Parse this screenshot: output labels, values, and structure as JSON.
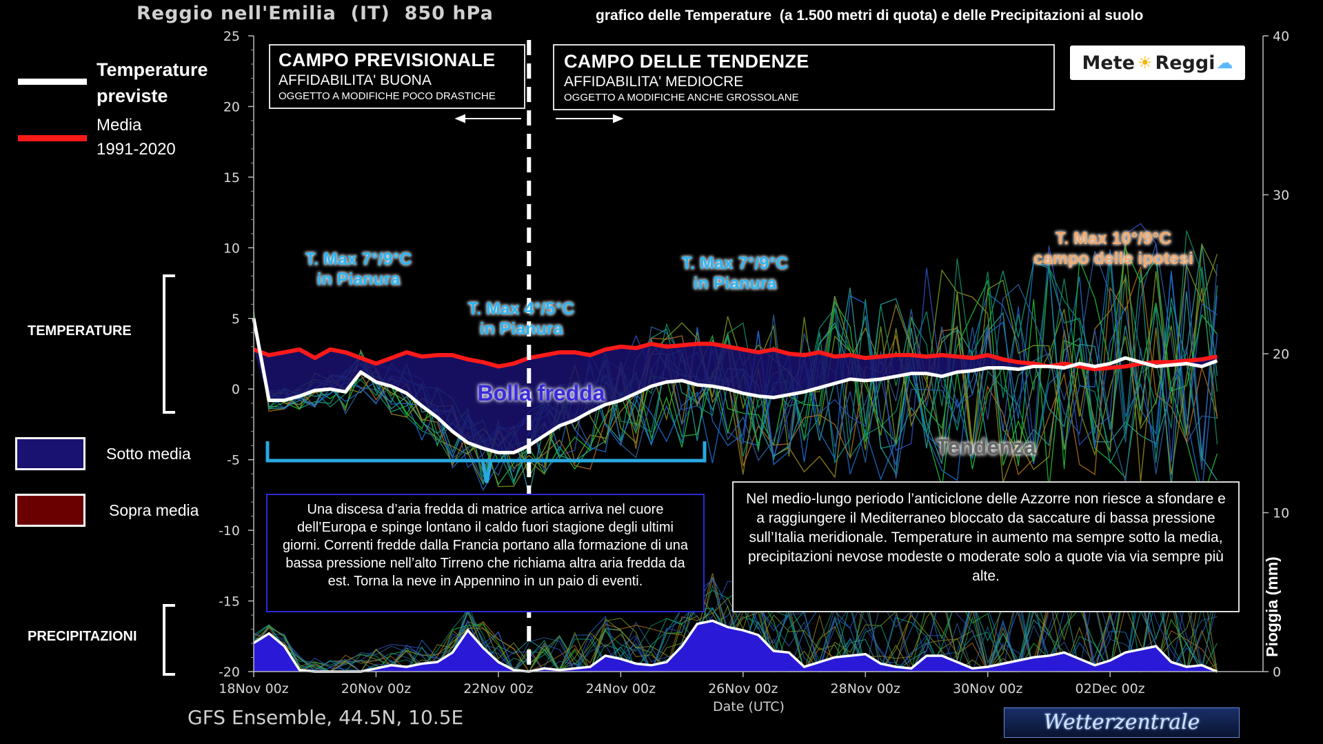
{
  "header": {
    "city": "Reggio nell'Emilia  (IT)  850 hPa",
    "subtitle": "grafico delle Temperature  (a 1.500 metri di quota) e delle Precipitazioni al suolo"
  },
  "legend": {
    "temp_label_1": "Temperature",
    "temp_label_2": "previste",
    "mean_label_1": "Media",
    "mean_label_2": "1991-2020",
    "below_label": "Sotto media",
    "above_label": "Sopra media",
    "section_temp": "TEMPERATURE",
    "section_precip": "PRECIPITAZIONI"
  },
  "boxes": {
    "forecast_title": "CAMPO PREVISIONALE",
    "forecast_line1": "AFFIDABILITA' BUONA",
    "forecast_line2": "OGGETTO A MODIFICHE POCO DRASTICHE",
    "trend_title": "CAMPO DELLE TENDENZE",
    "trend_line1": "AFFIDABILITA' MEDIOCRE",
    "trend_line2": "OGGETTO A MODIFICHE ANCHE GROSSOLANE"
  },
  "logo": {
    "text_a": "Mete",
    "text_b": "Reggi"
  },
  "annotations": {
    "tmax1_a": "T. Max 7°/9°C",
    "tmax1_b": "in Pianura",
    "tmax2_a": "T. Max 4°/5°C",
    "tmax2_b": "in Pianura",
    "tmax3_a": "T. Max 7°/9°C",
    "tmax3_b": "in Pianura",
    "tmax4_a": "T. Max 10°/9°C",
    "tmax4_b": "campo delle ipotesi",
    "bolla": "Bolla fredda",
    "tendenza": "Tendenza",
    "note_left": "Una discesa d’aria fredda di matrice artica arriva nel cuore dell’Europa e spinge lontano il caldo fuori stagione degli ultimi giorni. Correnti fredde dalla Francia portano alla formazione di una bassa pressione nell’alto Tirreno che richiama altra aria fredda da est. Torna la neve in Appennino in un paio di eventi.",
    "note_right": "Nel medio-lungo periodo l’anticiclone delle Azzorre non riesce a sfondare e a raggiungere il Mediterraneo bloccato da saccature di bassa pressione sull’Italia meridionale. Temperature in aumento ma sempre sotto la media, precipitazioni nevose modeste o moderate solo a quote via via sempre più alte."
  },
  "footer": {
    "model": "GFS Ensemble, 44.5N, 10.5E",
    "xaxis_title": "Date (UTC)",
    "brand": "Wetterzentrale",
    "y2label": "Pioggia (mm)"
  },
  "colors": {
    "forecast": "#ffffff",
    "mean": "#ff1a1a",
    "below_fill": "#1a1270",
    "above_fill": "#6b0000",
    "precip_fill": "#2a1ad8",
    "annotation_blue": "#29b6f6",
    "annotation_orange": "#f5a96a",
    "bracket": "#29a8e0"
  },
  "chart_data": {
    "type": "line",
    "title": "Reggio nell'Emilia  (IT)  850 hPa",
    "xlabel": "Date (UTC)",
    "ylabel": "",
    "y2label": "Pioggia (mm)",
    "ylim": [
      -20,
      25
    ],
    "y2lim": [
      0,
      40
    ],
    "yticks": [
      25,
      20,
      15,
      10,
      5,
      0,
      -5,
      -10,
      -15,
      -20
    ],
    "y2ticks": [
      40,
      30,
      20,
      10,
      0
    ],
    "x_range_days": [
      0,
      16.5
    ],
    "x_ticks": [
      {
        "day": 0,
        "label": "18Nov 00z"
      },
      {
        "day": 2,
        "label": "20Nov 00z"
      },
      {
        "day": 4,
        "label": "22Nov 00z"
      },
      {
        "day": 6,
        "label": "24Nov 00z"
      },
      {
        "day": 8,
        "label": "26Nov 00z"
      },
      {
        "day": 10,
        "label": "28Nov 00z"
      },
      {
        "day": 12,
        "label": "30Nov 00z"
      },
      {
        "day": 14,
        "label": "02Dec 00z"
      }
    ],
    "forecast_split_day": 4.5,
    "series": [
      {
        "name": "Temperature previste",
        "x": [
          0,
          0.25,
          0.5,
          0.75,
          1,
          1.25,
          1.5,
          1.75,
          2,
          2.25,
          2.5,
          2.75,
          3,
          3.25,
          3.5,
          3.75,
          4,
          4.25,
          4.5,
          4.75,
          5,
          5.25,
          5.5,
          5.75,
          6,
          6.25,
          6.5,
          6.75,
          7,
          7.25,
          7.5,
          7.75,
          8,
          8.25,
          8.5,
          8.75,
          9,
          9.25,
          9.5,
          9.75,
          10,
          10.25,
          10.5,
          10.75,
          11,
          11.25,
          11.5,
          11.75,
          12,
          12.25,
          12.5,
          12.75,
          13,
          13.25,
          13.5,
          13.75,
          14,
          14.25,
          14.5,
          14.75,
          15,
          15.25,
          15.5,
          15.75
        ],
        "values": [
          5,
          -0.8,
          -0.8,
          -0.5,
          -0.1,
          0,
          -0.2,
          1.2,
          0.5,
          0.2,
          -0.3,
          -1.2,
          -2,
          -3,
          -3.8,
          -4.2,
          -4.5,
          -4.5,
          -4,
          -3.3,
          -2.6,
          -2.2,
          -1.6,
          -1.1,
          -0.8,
          -0.3,
          0.2,
          0.5,
          0.6,
          0.3,
          0.2,
          0,
          -0.3,
          -0.5,
          -0.6,
          -0.4,
          -0.2,
          0.1,
          0.4,
          0.7,
          0.6,
          0.7,
          0.9,
          1.1,
          1.1,
          0.9,
          1.2,
          1.3,
          1.5,
          1.5,
          1.4,
          1.6,
          1.6,
          1.5,
          1.8,
          1.6,
          1.8,
          2.2,
          1.9,
          1.6,
          1.7,
          1.8,
          1.6,
          2
        ]
      },
      {
        "name": "Media 1991-2020",
        "x": [
          0,
          0.25,
          0.5,
          0.75,
          1,
          1.25,
          1.5,
          1.75,
          2,
          2.25,
          2.5,
          2.75,
          3,
          3.25,
          3.5,
          3.75,
          4,
          4.25,
          4.5,
          4.75,
          5,
          5.25,
          5.5,
          5.75,
          6,
          6.25,
          6.5,
          6.75,
          7,
          7.25,
          7.5,
          7.75,
          8,
          8.25,
          8.5,
          8.75,
          9,
          9.25,
          9.5,
          9.75,
          10,
          10.25,
          10.5,
          10.75,
          11,
          11.25,
          11.5,
          11.75,
          12,
          12.25,
          12.5,
          12.75,
          13,
          13.25,
          13.5,
          13.75,
          14,
          14.25,
          14.5,
          14.75,
          15,
          15.25,
          15.5,
          15.75
        ],
        "values": [
          2.8,
          2.4,
          2.6,
          2.8,
          2.2,
          2.8,
          2.6,
          2.2,
          1.8,
          2.2,
          2.6,
          2.3,
          2.4,
          2.4,
          2.1,
          1.9,
          1.6,
          1.8,
          2.2,
          2.4,
          2.6,
          2.6,
          2.4,
          2.8,
          3,
          2.9,
          3.2,
          3,
          3.1,
          3.2,
          3.2,
          3,
          2.8,
          2.6,
          2.8,
          2.5,
          2.4,
          2.6,
          2.3,
          2.4,
          2.2,
          2.3,
          2.4,
          2.4,
          2.3,
          2.4,
          2.3,
          2.2,
          2.4,
          2.1,
          1.9,
          1.8,
          1.6,
          1.8,
          1.6,
          1.4,
          1.5,
          1.6,
          1.8,
          1.9,
          1.9,
          2,
          2.1,
          2.3
        ]
      },
      {
        "name": "Pioggia (mm)",
        "axis": "y2",
        "x": [
          0,
          0.25,
          0.5,
          0.75,
          1,
          1.25,
          1.5,
          1.75,
          2,
          2.25,
          2.5,
          2.75,
          3,
          3.25,
          3.5,
          3.75,
          4,
          4.25,
          4.5,
          4.75,
          5,
          5.25,
          5.5,
          5.75,
          6,
          6.25,
          6.5,
          6.75,
          7,
          7.25,
          7.5,
          7.75,
          8,
          8.25,
          8.5,
          8.75,
          9,
          9.25,
          9.5,
          9.75,
          10,
          10.25,
          10.5,
          10.75,
          11,
          11.25,
          11.5,
          11.75,
          12,
          12.25,
          12.5,
          12.75,
          13,
          13.25,
          13.5,
          13.75,
          14,
          14.25,
          14.5,
          14.75,
          15,
          15.25,
          15.5,
          15.75
        ],
        "values": [
          1.8,
          2.4,
          1.6,
          0.1,
          0,
          0,
          0,
          0,
          0.2,
          0.4,
          0.3,
          0.5,
          0.6,
          1.2,
          2.6,
          1.5,
          0.6,
          0.1,
          0,
          0.2,
          0.1,
          0.2,
          0.3,
          1,
          0.8,
          0.5,
          0.4,
          0.6,
          1.6,
          3,
          3.2,
          2.8,
          2.6,
          2.3,
          1.3,
          1.2,
          0.3,
          0.6,
          0.9,
          1,
          1.1,
          0.5,
          0.3,
          0.2,
          1,
          1,
          0.6,
          0.2,
          0.3,
          0.5,
          0.7,
          0.9,
          1,
          1.2,
          0.8,
          0.4,
          0.7,
          1.2,
          1.4,
          1.6,
          0.6,
          0.3,
          0.4,
          0
        ]
      }
    ]
  }
}
